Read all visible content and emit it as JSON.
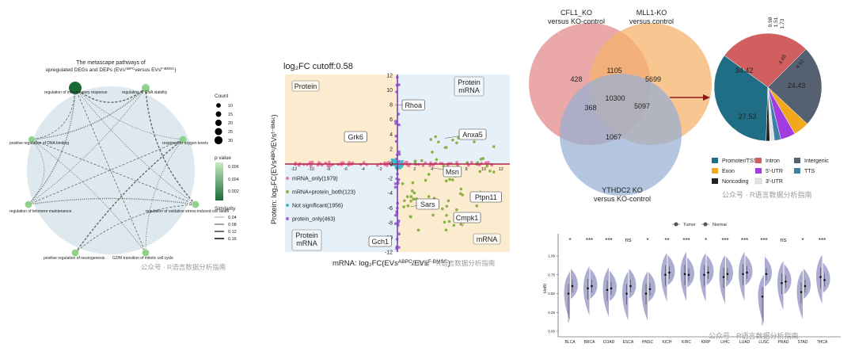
{
  "colors": {
    "network_bg": "#dde9ee",
    "node_green": "#8fd18a",
    "node_dark": "#1a6b35",
    "quad_orange": "#fbecd0",
    "quad_blue": "#e6f0f8",
    "venn_red": "#e48b8b",
    "venn_orange": "#f5b36c",
    "venn_blue": "#96aed3",
    "violin": "#9797c4"
  },
  "watermark": "公众号 · R语言数据分析指南",
  "chart_data": [
    {
      "type": "network",
      "title": "The metascape pathways of",
      "subtitle_pre": "upregulated DEGs and DEPs (EVs",
      "subtitle_sup1": "ABPC",
      "subtitle_mid": "versus EVs",
      "subtitle_sup2": "F-BMSC",
      "subtitle_post": ")",
      "nodes": [
        {
          "label": "regulation of inflammatory response",
          "count": 30,
          "p": 0.0001,
          "dark": true
        },
        {
          "label": "regulation of RNA stability",
          "count": 15,
          "p": 0.003
        },
        {
          "label": "response to oxygen levels",
          "count": 12,
          "p": 0.004
        },
        {
          "label": "regulation of oxidative stress-induced cell death",
          "count": 12,
          "p": 0.004
        },
        {
          "label": "G2/M transition of mitotic cell cycle",
          "count": 12,
          "p": 0.004
        },
        {
          "label": "positive regulation of neurogenesis",
          "count": 12,
          "p": 0.004
        },
        {
          "label": "regulation of telomere maintenance",
          "count": 12,
          "p": 0.004
        },
        {
          "label": "positive regulation of DNA binding",
          "count": 10,
          "p": 0.004
        }
      ],
      "legend_count_title": "Count",
      "legend_count_values": [
        "10",
        "15",
        "20",
        "25",
        "30"
      ],
      "legend_p_title": "p value",
      "legend_p_ticks": [
        "0.006",
        "0.004",
        "0.002"
      ],
      "legend_sim_title": "Similarity",
      "legend_sim_values": [
        "0.04",
        "0.08",
        "0.12",
        "0.16"
      ]
    },
    {
      "type": "scatter",
      "title": "log₂FC cutoff:0.58",
      "xlabel_pre": "mRNA: log₂FC(EVs",
      "xlabel_sup1": "ABPC",
      "xlabel_mid": "/EVs",
      "xlabel_sup2": "F-BMSC",
      "xlabel_post": ")",
      "ylabel": "Protein: log₂FC(EVsᴬᴮᴾᶜ/EVsᶠ⁻ᴮᴹˢᶜ)",
      "xlim": [
        -13,
        13
      ],
      "ylim": [
        -12,
        12
      ],
      "x_ticks": [
        "-12",
        "-10",
        "-8",
        "-6",
        "-4",
        "-2",
        "0",
        "2",
        "4",
        "6",
        "8",
        "10",
        "12"
      ],
      "y_ticks": [
        "12",
        "10",
        "8",
        "6",
        "4",
        "2",
        "0",
        "-2",
        "-4",
        "-6",
        "-8",
        "-10",
        "-12"
      ],
      "quadrant_labels": {
        "top_left": "Protein",
        "top_right": "Protein\nmRNA",
        "bottom_left": "Protein\nmRNA",
        "bottom_right": "mRNA"
      },
      "legend": [
        {
          "label": "mRNA_only(1979)",
          "color": "#e87aa0"
        },
        {
          "label": "mRNA+protein_both(123)",
          "color": "#8db045"
        },
        {
          "label": "Not significant(1956)",
          "color": "#40b8c8"
        },
        {
          "label": "protein_only(463)",
          "color": "#a06ad0"
        }
      ],
      "genes": [
        {
          "name": "Rhoa",
          "x": -0.3,
          "y": 8.0
        },
        {
          "name": "Grk6",
          "x": -3.5,
          "y": 3.2
        },
        {
          "name": "Anxa5",
          "x": 5.5,
          "y": 3.5
        },
        {
          "name": "Msn",
          "x": 4.0,
          "y": -0.5
        },
        {
          "name": "Ptpn11",
          "x": 9.5,
          "y": -3.5
        },
        {
          "name": "Sars",
          "x": 1.5,
          "y": -5.8
        },
        {
          "name": "Cmpk1",
          "x": 7.5,
          "y": -8.5
        },
        {
          "name": "Gch1",
          "x": -2.0,
          "y": -10.5
        }
      ]
    },
    {
      "type": "venn",
      "sets": [
        {
          "line1": "CFL1_KO",
          "line2": "versus KO-control"
        },
        {
          "line1": "MLL1-KO",
          "line2": "versus control"
        },
        {
          "line1": "YTHDC2 KO",
          "line2": "versus KO-control"
        }
      ],
      "regions": {
        "a_only": "428",
        "ab": "1105",
        "b_only": "5699",
        "abc": "10300",
        "ac": "368",
        "bc": "5097",
        "c_only": "1067"
      }
    },
    {
      "type": "pie",
      "slices": [
        {
          "label": "Promoter/TSS",
          "value": 34.42,
          "color": "#1f6e86"
        },
        {
          "label": "Intron",
          "value": 27.53,
          "color": "#d25f5f"
        },
        {
          "label": "Intergenic",
          "value": 24.43,
          "color": "#556070"
        },
        {
          "label": "Exon",
          "value": 4.92,
          "color": "#f2a81e"
        },
        {
          "label": "5'-UTR",
          "value": 4.48,
          "color": "#a23be0"
        },
        {
          "label": "TTS",
          "value": 1.73,
          "color": "#3e7fa6"
        },
        {
          "label": "3'-UTR",
          "value": 1.51,
          "color": "#e2e2e2"
        },
        {
          "label": "Noncoding",
          "value": 0.98,
          "color": "#222222"
        }
      ],
      "shown_labels": [
        "34.42",
        "27.53",
        "24.43",
        "4.92",
        "4.48",
        "1.73",
        "1.51",
        "0.98"
      ]
    },
    {
      "type": "violin",
      "ylabel": "HoBI",
      "ylim": [
        0,
        1
      ],
      "y_ticks": [
        "1.00",
        "0.75",
        "0.50",
        "0.25",
        "0.00"
      ],
      "legend": [
        "Tumor",
        "Normal"
      ],
      "categories": [
        "BLCA",
        "BRCA",
        "COAD",
        "ESCA",
        "HNSC",
        "KICH",
        "KIRC",
        "KIRP",
        "LIHC",
        "LUAD",
        "LUSC",
        "PRAD",
        "STAD",
        "THCA"
      ],
      "significance": [
        "*",
        "***",
        "***",
        "ns",
        "*",
        "**",
        "***",
        "*",
        "***",
        "***",
        "***",
        "ns",
        "*",
        "***"
      ],
      "tumor_median": [
        0.5,
        0.57,
        0.55,
        0.5,
        0.5,
        0.75,
        0.76,
        0.75,
        0.72,
        0.76,
        0.46,
        0.64,
        0.52,
        0.72
      ],
      "normal_median": [
        0.6,
        0.6,
        0.57,
        0.6,
        0.56,
        0.78,
        0.75,
        0.78,
        0.76,
        0.78,
        0.76,
        0.66,
        0.6,
        0.68
      ]
    }
  ]
}
